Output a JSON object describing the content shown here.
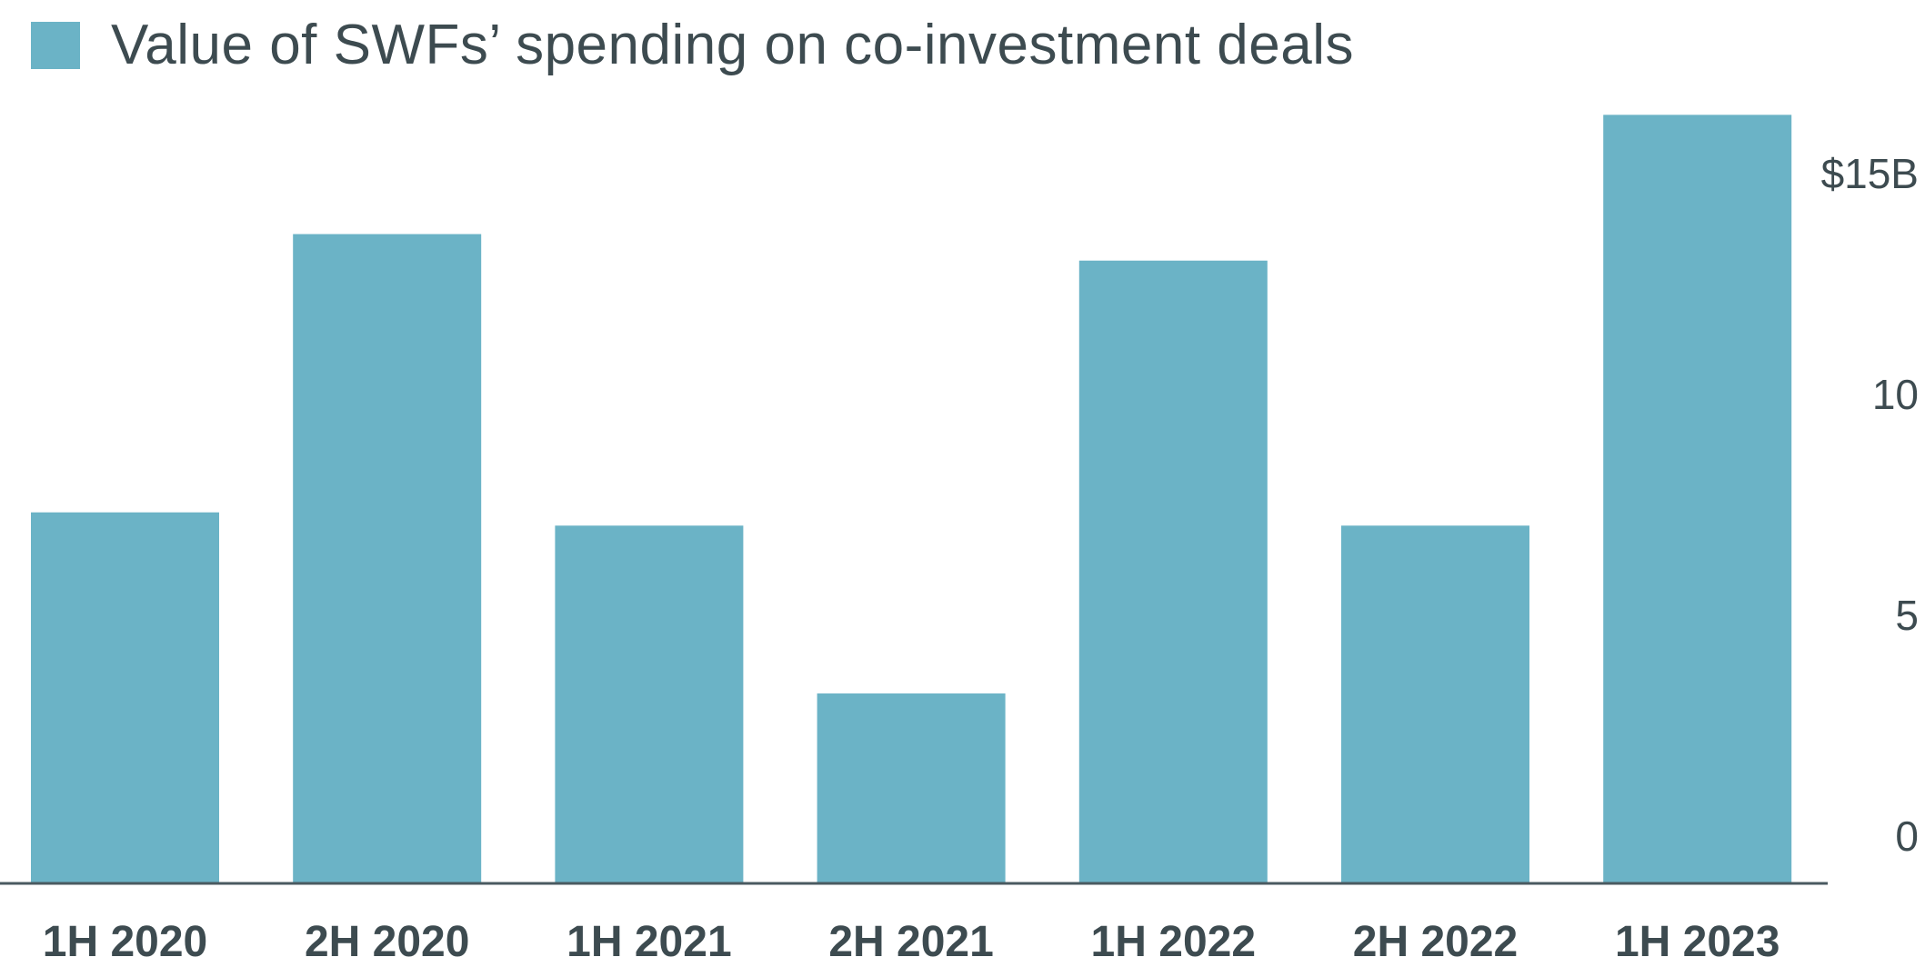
{
  "chart_data": {
    "type": "bar",
    "title": "",
    "legend": [
      "Value of SWFs’ spending on co-investment deals"
    ],
    "legend_position": "top-left",
    "categories": [
      "1H 2020",
      "2H 2020",
      "1H 2021",
      "2H 2021",
      "1H 2022",
      "2H 2022",
      "1H 2023"
    ],
    "series": [
      {
        "name": "Value of SWFs’ spending on co-investment deals",
        "values": [
          8.4,
          14.7,
          8.1,
          4.3,
          14.1,
          8.1,
          17.4
        ]
      }
    ],
    "yticks": [
      0,
      5,
      10,
      15
    ],
    "ytick_labels": [
      "0",
      "5",
      "10",
      "$15B"
    ],
    "ylim": [
      0,
      17.5
    ],
    "y_axis_side": "right",
    "xlabel": "",
    "ylabel": "",
    "grid": false,
    "colors": {
      "bar": "#6bb3c6",
      "text": "#3d4b50",
      "axis": "#4a5a60"
    }
  }
}
